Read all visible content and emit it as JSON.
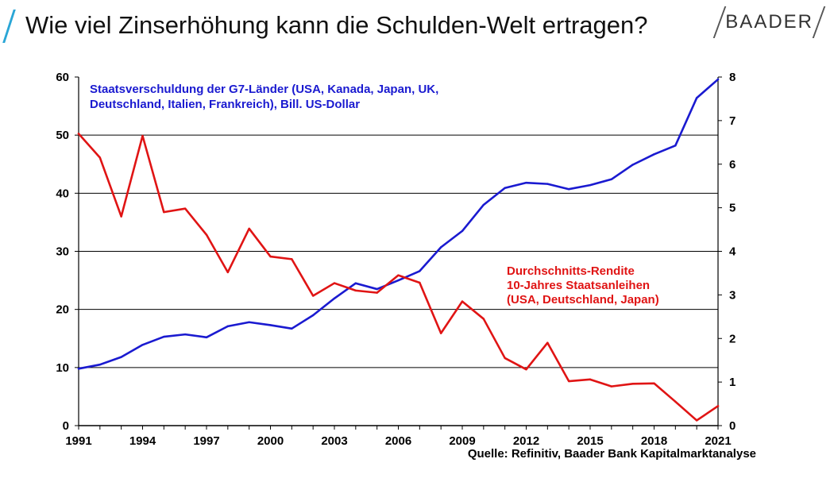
{
  "header": {
    "title": "Wie viel Zinserhöhung kann die Schulden-Welt ertragen?",
    "brand": "BAADER"
  },
  "colors": {
    "accent": "#2aa6d6",
    "debt_series": "#1a1ad0",
    "yield_series": "#e01414"
  },
  "chart_data": {
    "type": "line",
    "title": "",
    "x": [
      1991,
      1992,
      1993,
      1994,
      1995,
      1996,
      1997,
      1998,
      1999,
      2000,
      2001,
      2002,
      2003,
      2004,
      2005,
      2006,
      2007,
      2008,
      2009,
      2010,
      2011,
      2012,
      2013,
      2014,
      2015,
      2016,
      2017,
      2018,
      2019,
      2020,
      2021
    ],
    "x_ticks": [
      "1991",
      "1994",
      "1997",
      "2000",
      "2003",
      "2006",
      "2009",
      "2012",
      "2015",
      "2018",
      "2021"
    ],
    "y_left_ticks": [
      "0",
      "10",
      "20",
      "30",
      "40",
      "50",
      "60"
    ],
    "y_right_ticks": [
      "0",
      "1",
      "2",
      "3",
      "4",
      "5",
      "6",
      "7",
      "8"
    ],
    "ylim_left": [
      0,
      60
    ],
    "ylim_right": [
      0,
      8
    ],
    "grid": true,
    "series": [
      {
        "axis": "left",
        "color": "#1a1ad0",
        "label_lines": [
          "Staatsverschuldung der G7-Länder (USA, Kanada, Japan, UK,",
          "Deutschland, Italien, Frankreich), Bill. US-Dollar"
        ],
        "values": [
          9.8,
          10.5,
          11.8,
          13.9,
          15.3,
          15.7,
          15.2,
          17.1,
          17.8,
          17.3,
          16.7,
          19.0,
          21.9,
          24.5,
          23.5,
          25.0,
          26.6,
          30.7,
          33.5,
          38.0,
          40.9,
          41.8,
          41.6,
          40.7,
          41.4,
          42.4,
          44.9,
          46.7,
          48.2,
          56.4,
          59.6
        ]
      },
      {
        "axis": "right",
        "color": "#e01414",
        "label_lines": [
          "Durchschnitts-Rendite",
          "10-Jahres Staatsanleihen",
          "(USA, Deutschland, Japan)"
        ],
        "values": [
          6.7,
          6.15,
          4.8,
          6.65,
          4.9,
          4.98,
          4.38,
          3.52,
          4.52,
          3.88,
          3.82,
          2.98,
          3.27,
          3.1,
          3.05,
          3.45,
          3.28,
          2.12,
          2.85,
          2.45,
          1.55,
          1.29,
          1.9,
          1.02,
          1.06,
          0.9,
          0.96,
          0.97,
          0.55,
          0.12,
          0.45
        ]
      }
    ],
    "source": "Quelle: Refinitiv, Baader Bank Kapitalmarktanalyse"
  }
}
